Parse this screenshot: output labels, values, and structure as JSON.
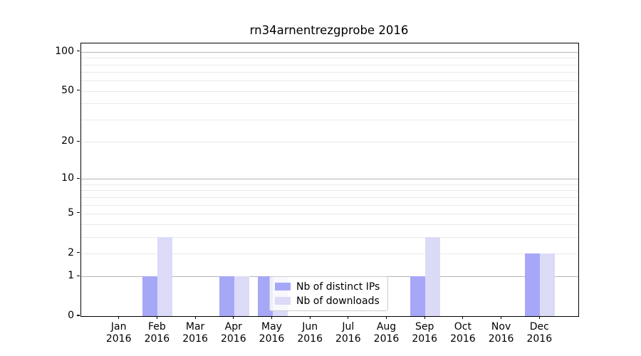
{
  "chart_data": {
    "type": "bar",
    "title": "rn34arnentrezgprobe 2016",
    "categories": [
      "Jan",
      "Feb",
      "Mar",
      "Apr",
      "May",
      "Jun",
      "Jul",
      "Aug",
      "Sep",
      "Oct",
      "Nov",
      "Dec"
    ],
    "year": "2016",
    "series": [
      {
        "name": "Nb of distinct IPs",
        "color": "#a7a7f7",
        "values": [
          0,
          1,
          0,
          1,
          1,
          0,
          0,
          0,
          1,
          0,
          0,
          2
        ]
      },
      {
        "name": "Nb of downloads",
        "color": "#dbdbf8",
        "values": [
          0,
          3,
          0,
          1,
          1,
          0,
          0,
          0,
          3,
          0,
          0,
          2
        ]
      }
    ],
    "y_axis": {
      "scale": "log1p",
      "tick_labels": [
        "0",
        "1",
        "2",
        "5",
        "10",
        "20",
        "50",
        "100"
      ],
      "tick_values": [
        0,
        1,
        2,
        5,
        10,
        20,
        50,
        100
      ],
      "major_gridlines": [
        1,
        10,
        100
      ],
      "minor_gridlines": [
        2,
        3,
        4,
        5,
        6,
        7,
        8,
        9,
        20,
        30,
        40,
        50,
        60,
        70,
        80,
        90
      ],
      "top_value": 116,
      "ylim": [
        0,
        116
      ]
    },
    "legend": {
      "position": "lower-center",
      "labels": [
        "Nb of distinct IPs",
        "Nb of downloads"
      ]
    },
    "grid": true,
    "colors": {
      "axis": "#000000",
      "major_grid": "#b5b5b5",
      "minor_grid": "#e9e9e9",
      "background": "#ffffff"
    }
  }
}
